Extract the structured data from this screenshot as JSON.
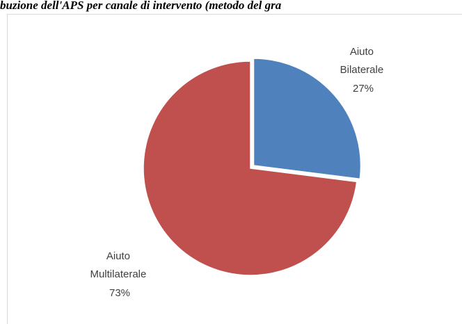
{
  "header": {
    "title": "buzione dell'APS per canale di intervento (metodo del gra"
  },
  "chart_data": {
    "type": "pie",
    "title": "",
    "labels": [
      "Aiuto Bilaterale",
      "Aiuto Multilaterale"
    ],
    "values": [
      27,
      73
    ],
    "unit": "%",
    "colors": [
      "#4f81bd",
      "#c0504d"
    ],
    "exploded": true,
    "start_angle": "12 o'clock, clockwise",
    "slices": [
      {
        "name_line1": "Aiuto",
        "name_line2": "Bilaterale",
        "pct": "27%"
      },
      {
        "name_line1": "Aiuto",
        "name_line2": "Multilaterale",
        "pct": "73%"
      }
    ],
    "legend": "none"
  }
}
